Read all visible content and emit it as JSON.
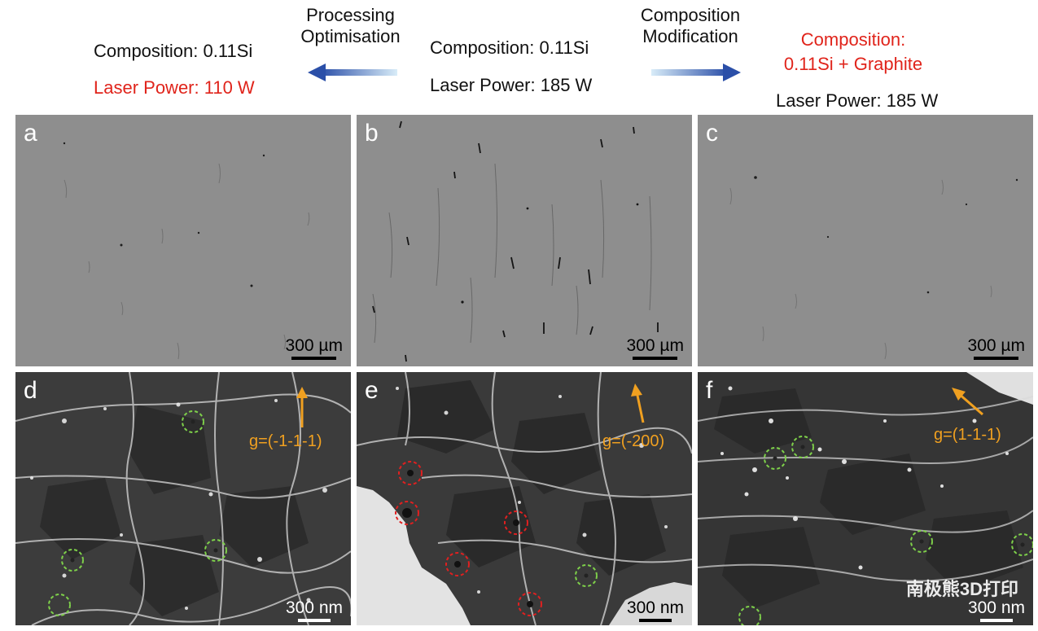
{
  "header": {
    "left": {
      "composition": "Composition: 0.11Si",
      "laser_power": "Laser Power: 110 W"
    },
    "left_arrow_label": {
      "line1": "Processing",
      "line2": "Optimisation"
    },
    "center": {
      "composition": "Composition: 0.11Si",
      "laser_power": "Laser Power: 185 W"
    },
    "right_arrow_label": {
      "line1": "Composition",
      "line2": "Modification"
    },
    "right": {
      "composition_line1": "Composition:",
      "composition_line2": "0.11Si + Graphite",
      "laser_power": "Laser Power: 185 W"
    }
  },
  "panels": {
    "a": {
      "label": "a",
      "scale": "300 µm"
    },
    "b": {
      "label": "b",
      "scale": "300 µm"
    },
    "c": {
      "label": "c",
      "scale": "300 µm"
    },
    "d": {
      "label": "d",
      "scale": "300 nm",
      "g_vector": "g=(-1-1-1)"
    },
    "e": {
      "label": "e",
      "scale": "300 nm",
      "g_vector": "g=(-200)"
    },
    "f": {
      "label": "f",
      "scale": "300 nm",
      "g_vector": "g=(1-1-1)"
    }
  },
  "watermark": "南极熊3D打印",
  "colors": {
    "red_text": "#e0241b",
    "arrow_blue": "#2b4fa8",
    "g_vector_orange": "#f0a020",
    "circle_green": "#7ed04a",
    "circle_red": "#e02020"
  }
}
